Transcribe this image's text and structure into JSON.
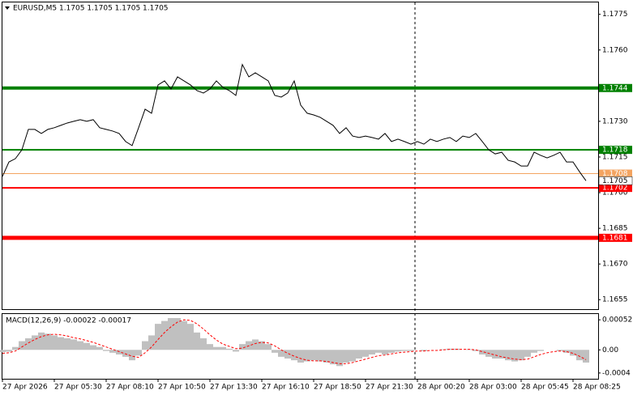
{
  "chart_data": [
    {
      "type": "line",
      "title": "EURUSD,M5  1.1705 1.1705 1.1705 1.1705",
      "categories": [
        "27 Apr 2026",
        null,
        null,
        null,
        null,
        null,
        null,
        null,
        "27 Apr 05:30",
        null,
        null,
        null,
        null,
        null,
        null,
        null,
        "27 Apr 08:10",
        null,
        null,
        null,
        null,
        null,
        null,
        null,
        "27 Apr 10:50",
        null,
        null,
        null,
        null,
        null,
        null,
        null,
        "27 Apr 13:30",
        null,
        null,
        null,
        null,
        null,
        null,
        null,
        "27 Apr 16:10",
        null,
        null,
        null,
        null,
        null,
        null,
        null,
        "27 Apr 18:50",
        null,
        null,
        null,
        null,
        null,
        null,
        null,
        "27 Apr 21:30",
        null,
        null,
        null,
        null,
        null,
        null,
        null,
        "28 Apr 00:20",
        null,
        null,
        null,
        null,
        null,
        null,
        null,
        "28 Apr 03:00",
        null,
        null,
        null,
        null,
        null,
        null,
        null,
        "28 Apr 05:45",
        null,
        null,
        null,
        null,
        null,
        null,
        null,
        "28 Apr 08:25",
        null,
        null
      ],
      "series": [
        {
          "color": "#000000",
          "values": [
            1.17068,
            1.17129,
            1.17143,
            1.1718,
            1.17266,
            1.17266,
            1.17249,
            1.17266,
            1.17273,
            1.17283,
            1.17293,
            1.173,
            1.17307,
            1.173,
            1.17307,
            1.17273,
            1.17266,
            1.17259,
            1.17249,
            1.17215,
            1.17198,
            1.17273,
            1.17351,
            1.17334,
            1.17453,
            1.1747,
            1.17436,
            1.17487,
            1.1747,
            1.17453,
            1.17429,
            1.17419,
            1.17436,
            1.1747,
            1.17443,
            1.17429,
            1.17409,
            1.17539,
            1.17487,
            1.17504,
            1.17487,
            1.1747,
            1.17409,
            1.17402,
            1.17419,
            1.1747,
            1.17368,
            1.17334,
            1.17327,
            1.17317,
            1.173,
            1.17283,
            1.17249,
            1.17273,
            1.17238,
            1.17232,
            1.17238,
            1.17232,
            1.17225,
            1.17249,
            1.17215,
            1.17225,
            1.17215,
            1.17204,
            1.17215,
            1.17204,
            1.17225,
            1.17215,
            1.17225,
            1.17232,
            1.17215,
            1.17238,
            1.17232,
            1.17249,
            1.17215,
            1.1718,
            1.17163,
            1.1717,
            1.17136,
            1.17129,
            1.17112,
            1.17112,
            1.1717,
            1.17157,
            1.17146,
            1.17157,
            1.1717,
            1.17129,
            1.17129,
            1.17088,
            1.1705
          ]
        }
      ],
      "ylim": [
        1.1651,
        1.178
      ],
      "yticks": [
        1.1775,
        {
          "value": 1.176,
          "label": "1.1760"
        },
        {
          "value": 1.173,
          "label": "1.1730"
        },
        1.1715,
        {
          "value": 1.17,
          "label": "1.1700"
        },
        1.1685,
        {
          "value": 1.167,
          "label": "1.1670"
        },
        1.1655
      ],
      "levels": [
        {
          "value": 1.1744,
          "color": "#008000",
          "width": 4
        },
        {
          "value": 1.1718,
          "color": "#008000",
          "width": 2
        },
        {
          "value": 1.1708,
          "color": "#f4a460",
          "width": 1
        },
        {
          "value": 1.1702,
          "color": "#ff0000",
          "width": 2
        },
        {
          "value": 1.1681,
          "color": "#ff0000",
          "width": 5
        }
      ],
      "grid": false
    },
    {
      "type": "macd",
      "title": "MACD(12,26,9) -0.00022 -0.00017",
      "series": [
        {
          "color": "#c0c0c0",
          "values": [
            -4e-05,
            -3e-05,
            5e-05,
            0.00015,
            0.0002,
            0.00025,
            0.0003,
            0.00028,
            0.00025,
            0.00022,
            0.0002,
            0.00018,
            0.00015,
            0.00012,
            8e-05,
            5e-05,
            -2e-05,
            -5e-05,
            -8e-05,
            -0.00012,
            -0.00018,
            -0.0001,
            0.00015,
            0.00025,
            0.00045,
            0.0005,
            0.00055,
            0.00055,
            0.0005,
            0.00045,
            0.0003,
            0.0002,
            0.0001,
            5e-05,
            5e-05,
            2e-05,
            -3e-05,
            0.0001,
            0.00015,
            0.00018,
            0.00015,
            0.0001,
            -5e-05,
            -0.00012,
            -0.00015,
            -0.00018,
            -0.00022,
            -0.0002,
            -0.00018,
            -0.0002,
            -0.00022,
            -0.00025,
            -0.00028,
            -0.00022,
            -0.0002,
            -0.00015,
            -0.00012,
            -8e-05,
            -5e-05,
            -8e-05,
            -5e-05,
            -3e-05,
            -2e-05,
            -2e-05,
            0,
            -2e-05,
            0,
            0,
            1e-05,
            2e-05,
            2e-05,
            0,
            1e-05,
            -2e-05,
            -8e-05,
            -0.00012,
            -0.00015,
            -0.00015,
            -0.00018,
            -0.0002,
            -0.00018,
            -0.00012,
            -5e-05,
            -2e-05,
            0,
            0,
            -2e-05,
            -5e-05,
            -0.0001,
            -0.00018,
            -0.00022
          ]
        },
        {
          "color": "#ff0000",
          "style": "dashed",
          "values": [
            -6e-05,
            -5e-05,
            -2e-05,
            5e-05,
            0.00012,
            0.00018,
            0.00023,
            0.00026,
            0.00027,
            0.00026,
            0.00024,
            0.00021,
            0.00019,
            0.00016,
            0.00013,
            9e-05,
            5e-05,
            1e-05,
            -3e-05,
            -7e-05,
            -0.00011,
            -0.00013,
            -5e-05,
            5e-05,
            0.00018,
            0.0003,
            0.0004,
            0.00048,
            0.00052,
            0.00051,
            0.00045,
            0.00036,
            0.00026,
            0.00017,
            0.0001,
            6e-05,
            2e-05,
            3e-05,
            7e-05,
            0.00011,
            0.00013,
            0.00012,
            7e-05,
            0,
            -6e-05,
            -0.00011,
            -0.00015,
            -0.00018,
            -0.00019,
            -0.00019,
            -0.0002,
            -0.00022,
            -0.00024,
            -0.00024,
            -0.00022,
            -0.00019,
            -0.00016,
            -0.00013,
            -0.0001,
            -9e-05,
            -7e-05,
            -5e-05,
            -4e-05,
            -3e-05,
            -2e-05,
            -2e-05,
            -1e-05,
            -1e-05,
            0,
            1e-05,
            1e-05,
            1e-05,
            1e-05,
            0,
            -3e-05,
            -6e-05,
            -9e-05,
            -0.00012,
            -0.00014,
            -0.00016,
            -0.00017,
            -0.00016,
            -0.00012,
            -8e-05,
            -5e-05,
            -3e-05,
            -2e-05,
            -3e-05,
            -6e-05,
            -0.00011,
            -0.00017
          ]
        }
      ],
      "ylim": [
        -0.0005,
        0.00062
      ],
      "yticks": [
        0.00052,
        {
          "value": 0,
          "label": "0.00"
        },
        -0.0004
      ]
    }
  ]
}
